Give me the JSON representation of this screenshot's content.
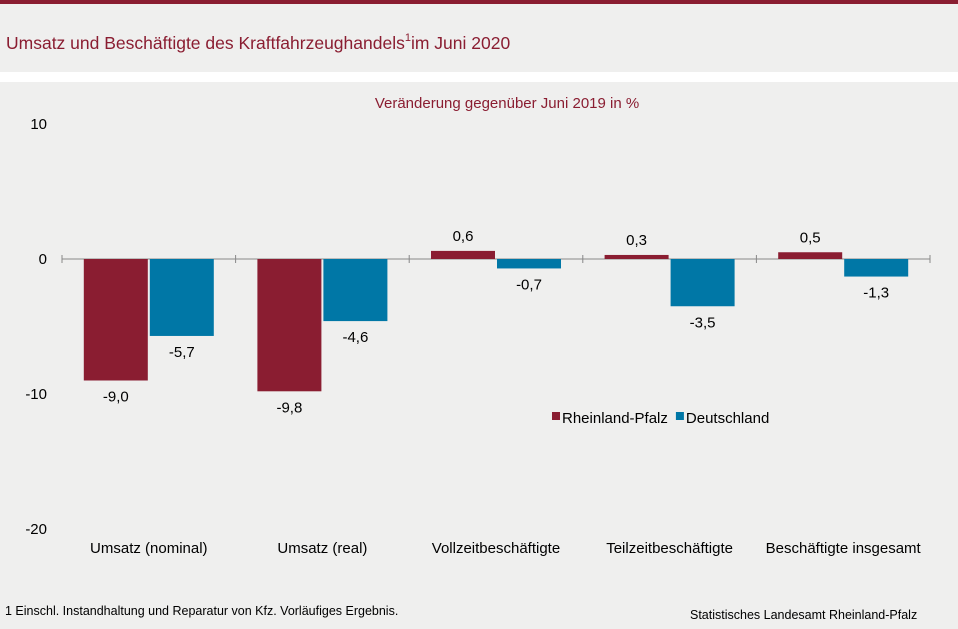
{
  "header": {
    "title": "Umsatz und Beschäftigte des Kraftfahrzeughandels",
    "title_sup": "1",
    "title_suffix": "im Juni 2020"
  },
  "footer": {
    "note": "1 Einschl. Instandhaltung und Reparatur von Kfz. Vorläufiges Ergebnis.",
    "source": "Statistisches Landesamt Rheinland-Pfalz"
  },
  "chart_data": {
    "type": "bar",
    "subtitle": "Veränderung gegenüber Juni 2019 in %",
    "categories": [
      "Umsatz (nominal)",
      "Umsatz (real)",
      "Vollzeitbeschäftigte",
      "Teilzeitbeschäftigte",
      "Beschäftigte insgesamt"
    ],
    "series": [
      {
        "name": "Rheinland-Pfalz",
        "color": "#8a1d31",
        "values": [
          -9.0,
          -9.8,
          0.6,
          0.3,
          0.5
        ],
        "labels": [
          "-9,0",
          "-9,8",
          "0,6",
          "0,3",
          "0,5"
        ]
      },
      {
        "name": "Deutschland",
        "color": "#0077a6",
        "values": [
          -5.7,
          -4.6,
          -0.7,
          -3.5,
          -1.3
        ],
        "labels": [
          "-5,7",
          "-4,6",
          "-0,7",
          "-3,5",
          "-1,3"
        ]
      }
    ],
    "ylim": [
      -20,
      10
    ],
    "yticks": [
      10,
      0,
      -10,
      -20
    ],
    "ytick_labels": [
      "10",
      "0",
      "-10",
      "-20"
    ],
    "grid": false,
    "legend_position": "right"
  }
}
